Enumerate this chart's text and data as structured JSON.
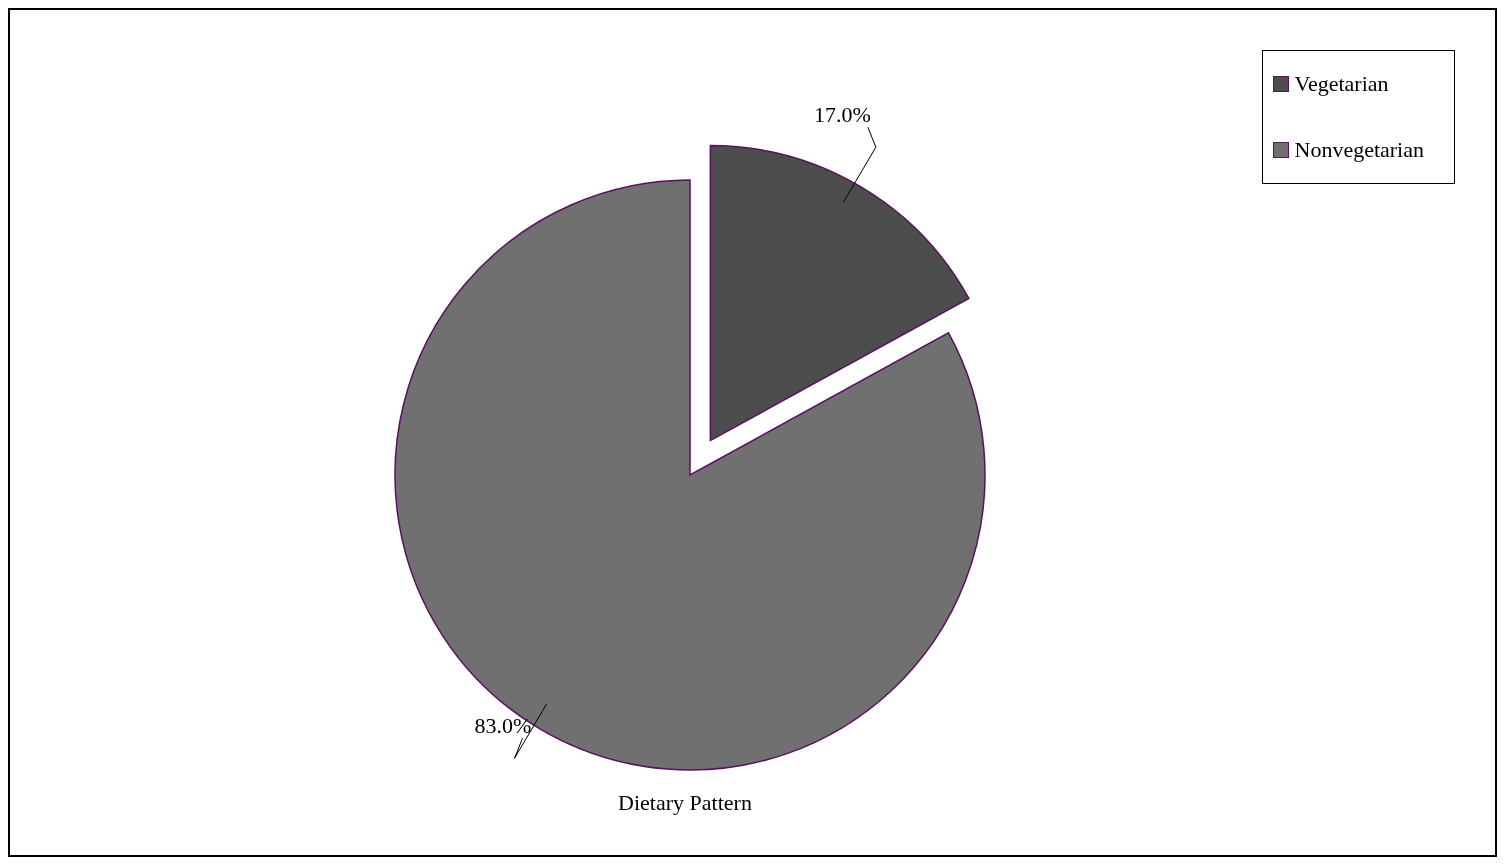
{
  "chart_data": {
    "type": "pie",
    "title": "Dietary Pattern",
    "categories": [
      "Vegetarian",
      "Nonvegetarian"
    ],
    "values": [
      17.0,
      83.0
    ],
    "colors": [
      "#4d4d4d",
      "#707070"
    ],
    "value_labels": [
      "17.0%",
      "83.0%"
    ],
    "legend": "top right"
  }
}
